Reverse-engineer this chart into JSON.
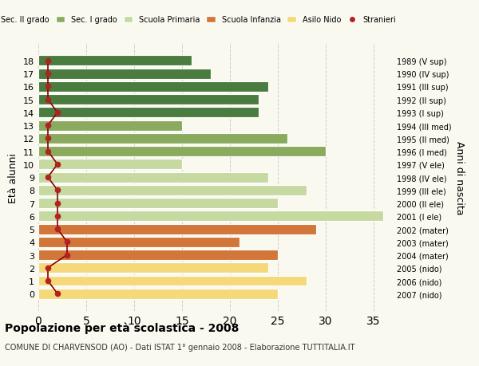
{
  "ages": [
    18,
    17,
    16,
    15,
    14,
    13,
    12,
    11,
    10,
    9,
    8,
    7,
    6,
    5,
    4,
    3,
    2,
    1,
    0
  ],
  "bar_values": [
    16,
    18,
    24,
    23,
    23,
    15,
    26,
    30,
    15,
    24,
    28,
    25,
    36,
    29,
    21,
    25,
    24,
    28,
    25
  ],
  "bar_colors": [
    "#4a7c3f",
    "#4a7c3f",
    "#4a7c3f",
    "#4a7c3f",
    "#4a7c3f",
    "#8aab5e",
    "#8aab5e",
    "#8aab5e",
    "#c5d9a0",
    "#c5d9a0",
    "#c5d9a0",
    "#c5d9a0",
    "#c5d9a0",
    "#d2763a",
    "#d2763a",
    "#d2763a",
    "#f5d87a",
    "#f5d87a",
    "#f5d87a"
  ],
  "stranieri_values": [
    1,
    1,
    1,
    1,
    2,
    1,
    1,
    1,
    2,
    1,
    2,
    2,
    2,
    2,
    3,
    3,
    1,
    1,
    2
  ],
  "right_labels": [
    "1989 (V sup)",
    "1990 (IV sup)",
    "1991 (III sup)",
    "1992 (II sup)",
    "1993 (I sup)",
    "1994 (III med)",
    "1995 (II med)",
    "1996 (I med)",
    "1997 (V ele)",
    "1998 (IV ele)",
    "1999 (III ele)",
    "2000 (II ele)",
    "2001 (I ele)",
    "2002 (mater)",
    "2003 (mater)",
    "2004 (mater)",
    "2005 (nido)",
    "2006 (nido)",
    "2007 (nido)"
  ],
  "legend_labels": [
    "Sec. II grado",
    "Sec. I grado",
    "Scuola Primaria",
    "Scuola Infanzia",
    "Asilo Nido",
    "Stranieri"
  ],
  "legend_colors": [
    "#4a7c3f",
    "#8aab5e",
    "#c5d9a0",
    "#d2763a",
    "#f5d87a",
    "#b22222"
  ],
  "xlabel": "",
  "ylabel_left": "Età alunni",
  "ylabel_right": "Anni di nascita",
  "title": "Popolazione per età scolastica - 2008",
  "subtitle": "COMUNE DI CHARVENSOD (AO) - Dati ISTAT 1° gennaio 2008 - Elaborazione TUTTITALIA.IT",
  "xlim": [
    0,
    37
  ],
  "xticks": [
    0,
    5,
    10,
    15,
    20,
    25,
    30,
    35
  ],
  "bg_color": "#f9f9f0",
  "grid_color": "#cccccc",
  "bar_edge_color": "white",
  "stranieri_color": "#b22222",
  "stranieri_line_color": "#8b0000"
}
